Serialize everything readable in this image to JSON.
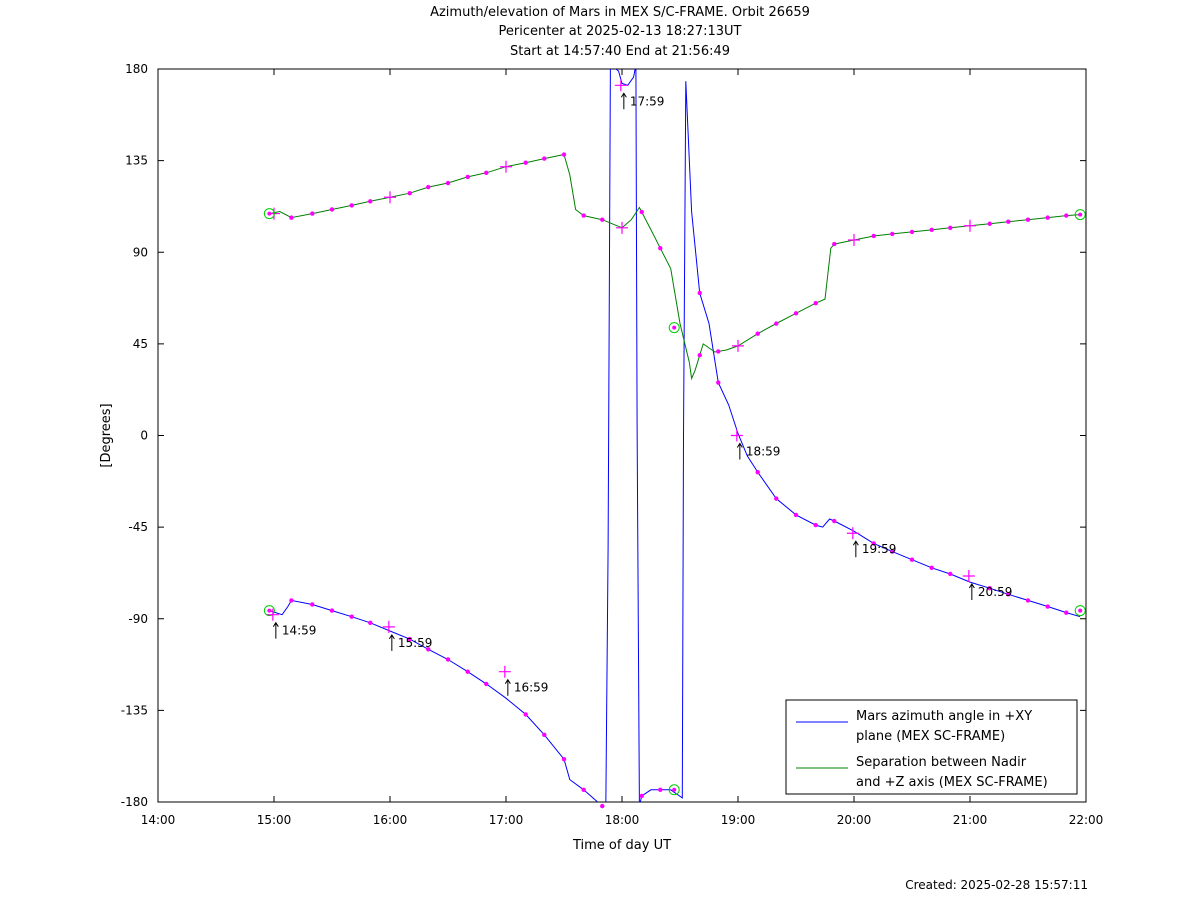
{
  "title_lines": [
    "Azimuth/elevation of Mars in MEX S/C-FRAME.  Orbit 26659",
    "Pericenter at 2025-02-13 18:27:13UT",
    "Start at 14:57:40 End at 21:56:49"
  ],
  "footer": "Created: 2025-02-28 15:57:11",
  "chart_data": {
    "type": "line",
    "xlabel": "Time of day UT",
    "ylabel": "[Degrees]",
    "x_unit": "hours of day",
    "xlim": [
      14,
      22
    ],
    "ylim": [
      -180,
      180
    ],
    "x_ticks": [
      14,
      15,
      16,
      17,
      18,
      19,
      20,
      21,
      22
    ],
    "x_tick_labels": [
      "14:00",
      "15:00",
      "16:00",
      "17:00",
      "18:00",
      "19:00",
      "20:00",
      "21:00",
      "22:00"
    ],
    "y_ticks": [
      180,
      135,
      90,
      45,
      0,
      -45,
      -90,
      -135,
      -180
    ],
    "y_tick_labels": [
      "180",
      "135",
      "90",
      "45",
      "0",
      "-45",
      "-90",
      "-135",
      "-180"
    ],
    "grid": false,
    "legend_position": "bottom-right",
    "colors": {
      "azimuth": "#0000ff",
      "separation": "#008000",
      "markers": "#ff00ff",
      "endpoints": "#00cc00"
    },
    "series": [
      {
        "name": "Mars azimuth angle in +XY plane (MEX SC-FRAME)",
        "legend_lines": [
          "Mars azimuth angle in +XY",
          "plane (MEX SC-FRAME)"
        ],
        "color": "#0000ff",
        "points": [
          [
            14.96,
            -86
          ],
          [
            15.07,
            -88
          ],
          [
            15.12,
            -84
          ],
          [
            15.15,
            -81
          ],
          [
            15.33,
            -83
          ],
          [
            15.5,
            -86
          ],
          [
            15.67,
            -89
          ],
          [
            15.83,
            -92
          ],
          [
            16.0,
            -96
          ],
          [
            16.17,
            -100
          ],
          [
            16.33,
            -105
          ],
          [
            16.5,
            -110
          ],
          [
            16.67,
            -116
          ],
          [
            16.83,
            -122
          ],
          [
            17.0,
            -129
          ],
          [
            17.17,
            -137
          ],
          [
            17.33,
            -147
          ],
          [
            17.5,
            -159
          ],
          [
            17.55,
            -169
          ],
          [
            17.67,
            -174
          ],
          [
            17.83,
            -182
          ],
          [
            17.86,
            -183
          ],
          [
            17.88,
            -55
          ],
          [
            17.9,
            182
          ],
          [
            17.97,
            179
          ],
          [
            18.0,
            173
          ],
          [
            18.05,
            172
          ],
          [
            18.1,
            176
          ],
          [
            18.12,
            182
          ],
          [
            18.13,
            5
          ],
          [
            18.15,
            -182
          ],
          [
            18.17,
            -177
          ],
          [
            18.25,
            -174
          ],
          [
            18.33,
            -174
          ],
          [
            18.42,
            -174
          ],
          [
            18.47,
            -176
          ],
          [
            18.52,
            -178
          ],
          [
            18.53,
            0
          ],
          [
            18.55,
            174
          ],
          [
            18.6,
            110
          ],
          [
            18.67,
            70
          ],
          [
            18.75,
            55
          ],
          [
            18.83,
            26
          ],
          [
            18.92,
            15
          ],
          [
            19.0,
            1
          ],
          [
            19.08,
            -10
          ],
          [
            19.17,
            -18
          ],
          [
            19.33,
            -31
          ],
          [
            19.5,
            -39
          ],
          [
            19.67,
            -44
          ],
          [
            19.73,
            -45
          ],
          [
            19.79,
            -41
          ],
          [
            19.83,
            -42
          ],
          [
            20.0,
            -47
          ],
          [
            20.17,
            -53
          ],
          [
            20.33,
            -57
          ],
          [
            20.5,
            -61
          ],
          [
            20.67,
            -65
          ],
          [
            20.83,
            -68
          ],
          [
            21.0,
            -72
          ],
          [
            21.17,
            -75
          ],
          [
            21.33,
            -78
          ],
          [
            21.5,
            -81
          ],
          [
            21.67,
            -84
          ],
          [
            21.83,
            -87
          ],
          [
            21.95,
            -89
          ]
        ]
      },
      {
        "name": "Separation between Nadir and +Z axis (MEX SC-FRAME)",
        "legend_lines": [
          "Separation between Nadir",
          "and +Z axis (MEX SC-FRAME)"
        ],
        "color": "#008000",
        "points": [
          [
            14.96,
            109
          ],
          [
            15.05,
            110
          ],
          [
            15.15,
            107
          ],
          [
            15.33,
            109
          ],
          [
            15.5,
            111
          ],
          [
            15.67,
            113
          ],
          [
            15.83,
            115
          ],
          [
            16.0,
            117
          ],
          [
            16.17,
            119
          ],
          [
            16.33,
            122
          ],
          [
            16.5,
            124
          ],
          [
            16.67,
            127
          ],
          [
            16.83,
            129
          ],
          [
            17.0,
            132
          ],
          [
            17.17,
            134
          ],
          [
            17.33,
            136
          ],
          [
            17.5,
            138
          ],
          [
            17.55,
            128
          ],
          [
            17.6,
            111
          ],
          [
            17.67,
            108
          ],
          [
            17.83,
            106
          ],
          [
            18.0,
            102
          ],
          [
            18.08,
            106
          ],
          [
            18.15,
            112
          ],
          [
            18.25,
            101
          ],
          [
            18.33,
            92
          ],
          [
            18.42,
            82
          ],
          [
            18.5,
            55
          ],
          [
            18.58,
            36
          ],
          [
            18.6,
            28
          ],
          [
            18.63,
            32
          ],
          [
            18.7,
            45
          ],
          [
            18.8,
            41
          ],
          [
            18.9,
            42
          ],
          [
            19.0,
            44
          ],
          [
            19.17,
            50
          ],
          [
            19.33,
            55
          ],
          [
            19.5,
            60
          ],
          [
            19.67,
            65
          ],
          [
            19.75,
            67
          ],
          [
            19.8,
            92
          ],
          [
            19.83,
            94
          ],
          [
            20.0,
            96
          ],
          [
            20.17,
            98
          ],
          [
            20.33,
            99
          ],
          [
            20.5,
            100
          ],
          [
            20.67,
            101
          ],
          [
            20.83,
            102
          ],
          [
            21.0,
            103
          ],
          [
            21.17,
            104
          ],
          [
            21.33,
            105
          ],
          [
            21.5,
            106
          ],
          [
            21.67,
            107
          ],
          [
            21.83,
            108
          ],
          [
            21.95,
            108.5
          ]
        ]
      }
    ],
    "markers": {
      "azimuth": [
        15.15,
        15.33,
        15.5,
        15.67,
        15.83,
        16.17,
        16.33,
        16.5,
        16.67,
        16.83,
        17.17,
        17.33,
        17.5,
        17.67,
        17.83,
        18.17,
        18.33,
        18.67,
        18.83,
        19.17,
        19.33,
        19.5,
        19.67,
        19.83,
        20.17,
        20.33,
        20.5,
        20.67,
        20.83,
        21.17,
        21.33,
        21.5,
        21.67,
        21.83
      ],
      "separation": [
        15.15,
        15.33,
        15.5,
        15.67,
        15.83,
        16.17,
        16.33,
        16.5,
        16.67,
        16.83,
        17.17,
        17.33,
        17.5,
        17.67,
        17.83,
        18.17,
        18.33,
        18.67,
        18.83,
        19.17,
        19.33,
        19.5,
        19.67,
        19.83,
        20.17,
        20.33,
        20.5,
        20.67,
        20.83,
        21.17,
        21.33,
        21.5,
        21.67,
        21.83
      ],
      "separation_hours": [
        {
          "x": 15.0,
          "y": 109
        },
        {
          "x": 16.0,
          "y": 117
        },
        {
          "x": 17.0,
          "y": 132
        },
        {
          "x": 18.0,
          "y": 102
        },
        {
          "x": 19.0,
          "y": 44
        },
        {
          "x": 20.0,
          "y": 96
        },
        {
          "x": 21.0,
          "y": 103
        }
      ],
      "circles": [
        {
          "x": 14.96,
          "y": 109
        },
        {
          "x": 21.95,
          "y": 108.5
        },
        {
          "x": 18.45,
          "y": 53
        },
        {
          "x": 14.96,
          "y": -86
        },
        {
          "x": 21.95,
          "y": -86
        },
        {
          "x": 18.45,
          "y": -174
        }
      ]
    },
    "time_annotations": [
      {
        "label": "14:59",
        "x": 14.99,
        "y": -88
      },
      {
        "label": "15:59",
        "x": 15.99,
        "y": -94
      },
      {
        "label": "16:59",
        "x": 16.99,
        "y": -116
      },
      {
        "label": "17:59",
        "x": 17.99,
        "y": 172
      },
      {
        "label": "18:59",
        "x": 18.99,
        "y": 0
      },
      {
        "label": "19:59",
        "x": 19.99,
        "y": -48
      },
      {
        "label": "20:59",
        "x": 20.99,
        "y": -69
      }
    ]
  }
}
